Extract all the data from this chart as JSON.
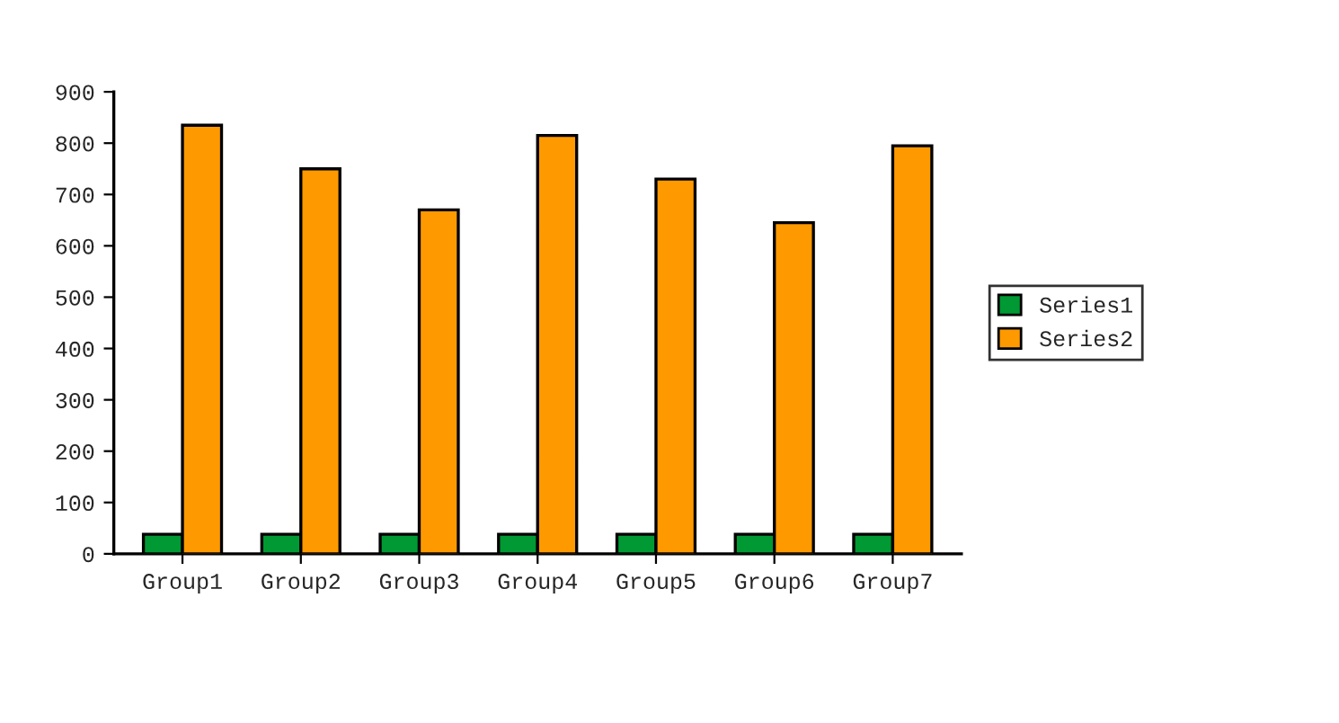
{
  "chart_data": {
    "type": "bar",
    "categories": [
      "Group1",
      "Group2",
      "Group3",
      "Group4",
      "Group5",
      "Group6",
      "Group7"
    ],
    "series": [
      {
        "name": "Series1",
        "color": "#009933",
        "values": [
          38,
          38,
          38,
          38,
          38,
          38,
          38
        ]
      },
      {
        "name": "Series2",
        "color": "#ff9900",
        "values": [
          835,
          750,
          670,
          815,
          730,
          645,
          795
        ]
      }
    ],
    "ylim": [
      0,
      900
    ],
    "yticks": [
      0,
      100,
      200,
      300,
      400,
      500,
      600,
      700,
      800,
      900
    ],
    "grid": false,
    "legend": "right"
  }
}
